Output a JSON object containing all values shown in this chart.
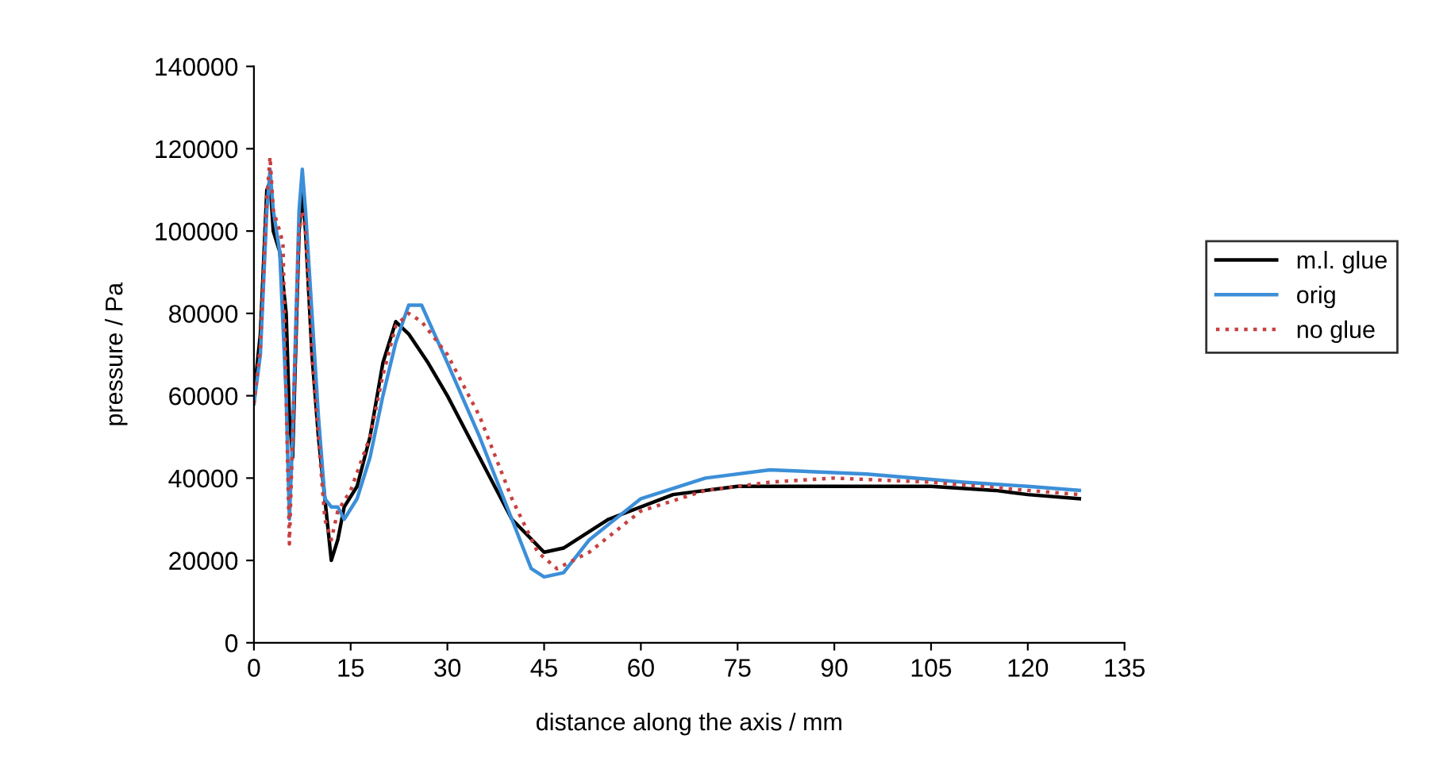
{
  "chart_data": {
    "type": "line",
    "xlabel": "distance along the axis / mm",
    "ylabel": "pressure / Pa",
    "xlim": [
      0,
      135
    ],
    "xticks": [
      0,
      15,
      30,
      45,
      60,
      75,
      90,
      105,
      120,
      135
    ],
    "ylim": [
      0,
      140000
    ],
    "yticks": [
      0,
      20000,
      40000,
      60000,
      80000,
      100000,
      120000,
      140000
    ],
    "grid": false,
    "legend": "right",
    "marker": "none",
    "series": [
      {
        "name": "m.l. glue",
        "color": "#000000",
        "line_style": "solid",
        "x": [
          0,
          1,
          2,
          2.5,
          3,
          4,
          5,
          5.5,
          6,
          7,
          7.5,
          8,
          9,
          10,
          11,
          12,
          13,
          14,
          16,
          18,
          20,
          22,
          24,
          27,
          30,
          35,
          40,
          45,
          48,
          55,
          65,
          75,
          90,
          105,
          115,
          120,
          128
        ],
        "values": [
          60000,
          75000,
          110000,
          112000,
          100000,
          95000,
          80000,
          55000,
          45000,
          100000,
          110000,
          100000,
          70000,
          50000,
          35000,
          20000,
          25000,
          33000,
          38000,
          50000,
          68000,
          78000,
          75000,
          68000,
          60000,
          45000,
          30000,
          22000,
          23000,
          30000,
          36000,
          38000,
          38000,
          38000,
          37000,
          36000,
          35000
        ]
      },
      {
        "name": "orig",
        "color": "#3c8fd8",
        "line_style": "solid",
        "x": [
          0,
          1,
          2,
          2.5,
          3,
          4,
          5,
          5.5,
          6,
          7,
          7.5,
          8,
          9,
          10,
          11,
          12,
          13,
          14,
          16,
          18,
          20,
          22,
          24,
          26,
          28,
          30,
          35,
          40,
          43,
          45,
          48,
          52,
          60,
          70,
          80,
          95,
          110,
          120,
          128
        ],
        "values": [
          58000,
          70000,
          105000,
          115000,
          105000,
          95000,
          60000,
          30000,
          50000,
          105000,
          115000,
          105000,
          80000,
          55000,
          35000,
          33000,
          33000,
          30000,
          35000,
          45000,
          60000,
          73000,
          82000,
          82000,
          75000,
          68000,
          50000,
          30000,
          18000,
          16000,
          17000,
          25000,
          35000,
          40000,
          42000,
          41000,
          39000,
          38000,
          37000
        ]
      },
      {
        "name": "no glue",
        "color": "#c84040",
        "line_style": "dotted",
        "x": [
          0,
          1,
          2,
          2.5,
          3,
          4,
          4.5,
          5,
          5.5,
          6,
          7,
          7.5,
          8,
          9,
          10,
          11,
          12,
          13,
          15,
          18,
          20,
          22,
          24,
          26,
          30,
          35,
          40,
          44,
          47,
          52,
          60,
          70,
          80,
          90,
          105,
          120,
          128
        ],
        "values": [
          58000,
          72000,
          108000,
          118000,
          105000,
          100000,
          97000,
          60000,
          24000,
          50000,
          100000,
          105000,
          100000,
          70000,
          50000,
          30000,
          25000,
          32000,
          37000,
          50000,
          65000,
          77000,
          80000,
          78000,
          70000,
          55000,
          35000,
          22000,
          18000,
          22000,
          32000,
          37000,
          39000,
          40000,
          39000,
          37000,
          36000
        ]
      }
    ]
  }
}
